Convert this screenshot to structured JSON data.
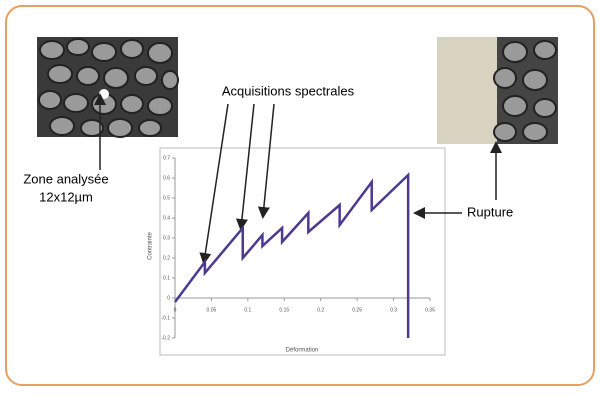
{
  "chart_data": {
    "type": "line",
    "annotations": {
      "acquisitions": "Acquisitions spectrales",
      "zone_line1": "Zone analysée",
      "zone_line2": "12x12µm",
      "rupture": "Rupture"
    },
    "ylabel": "Contrainte",
    "xlabel": "Déformation",
    "x": [
      0,
      0.041,
      0.041,
      0.093,
      0.093,
      0.12,
      0.12,
      0.147,
      0.147,
      0.183,
      0.183,
      0.226,
      0.226,
      0.27,
      0.27,
      0.32,
      0.32
    ],
    "values": [
      -0.02,
      0.18,
      0.125,
      0.35,
      0.2,
      0.315,
      0.26,
      0.35,
      0.28,
      0.425,
      0.33,
      0.465,
      0.365,
      0.58,
      0.44,
      0.615,
      -0.2
    ],
    "color": "#4b3a8f",
    "xlim": [
      0,
      0.35
    ],
    "xticks": [
      0,
      0.05,
      0.1,
      0.15,
      0.2,
      0.25,
      0.3,
      0.35
    ],
    "ylim": [
      -0.2,
      0.7
    ],
    "yticks": [
      -0.2,
      -0.1,
      0,
      0.1,
      0.2,
      0.3,
      0.4,
      0.5,
      0.6,
      0.7
    ]
  }
}
